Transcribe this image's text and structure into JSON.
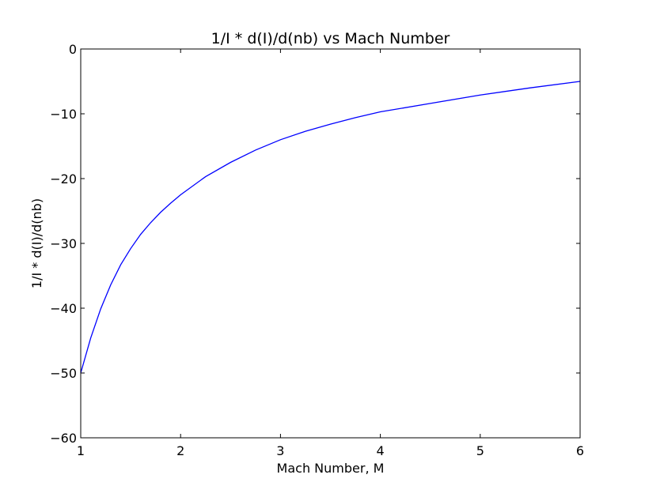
{
  "chart_data": {
    "type": "line",
    "title": "1/I * d(I)/d(nb) vs Mach Number",
    "xlabel": "Mach Number, M",
    "ylabel": "1/I * d(I)/d(nb)",
    "xlim": [
      1,
      6
    ],
    "ylim": [
      -60,
      0
    ],
    "xticks": [
      1,
      2,
      3,
      4,
      5,
      6
    ],
    "xtick_labels": [
      "1",
      "2",
      "3",
      "4",
      "5",
      "6"
    ],
    "yticks": [
      0,
      -10,
      -20,
      -30,
      -40,
      -50,
      -60
    ],
    "ytick_labels": [
      "0",
      "−10",
      "−20",
      "−30",
      "−40",
      "−50",
      "−60"
    ],
    "grid": false,
    "series": [
      {
        "color": "#0000ff",
        "x": [
          1.0,
          1.1,
          1.2,
          1.3,
          1.4,
          1.5,
          1.6,
          1.7,
          1.8,
          1.9,
          2.0,
          2.25,
          2.5,
          2.75,
          3.0,
          3.25,
          3.5,
          3.75,
          4.0,
          4.5,
          5.0,
          5.5,
          6.0
        ],
        "y": [
          -50.0,
          -44.6,
          -40.1,
          -36.4,
          -33.3,
          -30.8,
          -28.6,
          -26.8,
          -25.2,
          -23.8,
          -22.5,
          -19.7,
          -17.5,
          -15.6,
          -14.0,
          -12.7,
          -11.6,
          -10.6,
          -9.7,
          -8.4,
          -7.1,
          -6.0,
          -5.0
        ]
      }
    ]
  }
}
